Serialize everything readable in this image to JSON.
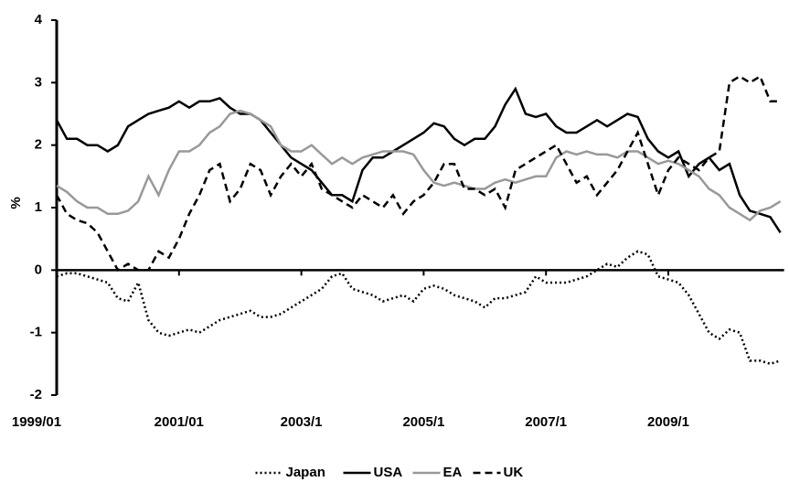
{
  "chart_data": {
    "type": "line",
    "y_label": "%",
    "categories": [
      "1999/01",
      null,
      null,
      null,
      null,
      null,
      null,
      null,
      null,
      null,
      null,
      null,
      "2001/01",
      null,
      null,
      null,
      null,
      null,
      null,
      null,
      null,
      null,
      null,
      null,
      "2003/1",
      null,
      null,
      null,
      null,
      null,
      null,
      null,
      null,
      null,
      null,
      null,
      "2005/1",
      null,
      null,
      null,
      null,
      null,
      null,
      null,
      null,
      null,
      null,
      null,
      "2007/1",
      null,
      null,
      null,
      null,
      null,
      null,
      null,
      null,
      null,
      null,
      null,
      "2009/1",
      null,
      null,
      null,
      null,
      null,
      null,
      null,
      null,
      null,
      null,
      null
    ],
    "ylim": [
      -2,
      4
    ],
    "yticks": [
      -2,
      -1,
      0,
      1,
      2,
      3,
      4
    ],
    "legend": "bottom",
    "series": [
      {
        "name": "Japan",
        "color": "#000000",
        "dash": "dotted",
        "values": [
          -0.1,
          -0.05,
          -0.05,
          -0.1,
          -0.15,
          -0.2,
          -0.45,
          -0.5,
          -0.2,
          -0.8,
          -1.0,
          -1.05,
          -1.0,
          -0.95,
          -1.0,
          -0.9,
          -0.8,
          -0.75,
          -0.7,
          -0.65,
          -0.75,
          -0.75,
          -0.7,
          -0.6,
          -0.5,
          -0.4,
          -0.3,
          -0.1,
          -0.05,
          -0.3,
          -0.35,
          -0.4,
          -0.5,
          -0.45,
          -0.4,
          -0.5,
          -0.3,
          -0.25,
          -0.3,
          -0.4,
          -0.45,
          -0.5,
          -0.6,
          -0.45,
          -0.45,
          -0.4,
          -0.35,
          -0.1,
          -0.2,
          -0.2,
          -0.2,
          -0.15,
          -0.1,
          0.0,
          0.1,
          0.05,
          0.2,
          0.3,
          0.25,
          -0.1,
          -0.15,
          -0.2,
          -0.4,
          -0.7,
          -1.0,
          -1.1,
          -0.95,
          -1.0,
          -1.45,
          -1.45,
          -1.5,
          -1.45
        ]
      },
      {
        "name": "USA",
        "color": "#000000",
        "dash": "solid",
        "values": [
          2.4,
          2.1,
          2.1,
          2.0,
          2.0,
          1.9,
          2.0,
          2.3,
          2.4,
          2.5,
          2.55,
          2.6,
          2.7,
          2.6,
          2.7,
          2.7,
          2.75,
          2.6,
          2.5,
          2.5,
          2.4,
          2.2,
          2.0,
          1.8,
          1.7,
          1.6,
          1.4,
          1.2,
          1.2,
          1.1,
          1.6,
          1.8,
          1.8,
          1.9,
          2.0,
          2.1,
          2.2,
          2.35,
          2.3,
          2.1,
          2.0,
          2.1,
          2.1,
          2.3,
          2.65,
          2.9,
          2.5,
          2.45,
          2.5,
          2.3,
          2.2,
          2.2,
          2.3,
          2.4,
          2.3,
          2.4,
          2.5,
          2.45,
          2.1,
          1.9,
          1.8,
          1.9,
          1.5,
          1.7,
          1.8,
          1.6,
          1.7,
          1.2,
          0.95,
          0.9,
          0.85,
          0.6
        ]
      },
      {
        "name": "EA",
        "color": "#999999",
        "dash": "solid",
        "values": [
          1.35,
          1.25,
          1.1,
          1.0,
          1.0,
          0.9,
          0.9,
          0.95,
          1.1,
          1.5,
          1.2,
          1.6,
          1.9,
          1.9,
          2.0,
          2.2,
          2.3,
          2.5,
          2.55,
          2.5,
          2.4,
          2.3,
          2.0,
          1.9,
          1.9,
          2.0,
          1.85,
          1.7,
          1.8,
          1.7,
          1.8,
          1.85,
          1.9,
          1.9,
          1.9,
          1.85,
          1.6,
          1.4,
          1.35,
          1.4,
          1.35,
          1.3,
          1.3,
          1.4,
          1.45,
          1.4,
          1.45,
          1.5,
          1.5,
          1.8,
          1.9,
          1.85,
          1.9,
          1.85,
          1.85,
          1.8,
          1.9,
          1.9,
          1.8,
          1.7,
          1.75,
          1.7,
          1.6,
          1.5,
          1.3,
          1.2,
          1.0,
          0.9,
          0.8,
          0.95,
          1.0,
          1.1
        ]
      },
      {
        "name": "UK",
        "color": "#000000",
        "dash": "dashed",
        "values": [
          1.2,
          0.9,
          0.8,
          0.75,
          0.6,
          0.3,
          0.0,
          0.1,
          0.0,
          0.0,
          0.3,
          0.2,
          0.5,
          0.9,
          1.2,
          1.6,
          1.7,
          1.1,
          1.3,
          1.7,
          1.6,
          1.2,
          1.5,
          1.7,
          1.5,
          1.7,
          1.3,
          1.2,
          1.1,
          1.0,
          1.2,
          1.1,
          1.0,
          1.2,
          0.9,
          1.1,
          1.2,
          1.4,
          1.7,
          1.7,
          1.3,
          1.3,
          1.2,
          1.3,
          1.0,
          1.6,
          1.7,
          1.8,
          1.9,
          2.0,
          1.7,
          1.4,
          1.5,
          1.2,
          1.4,
          1.6,
          1.9,
          2.2,
          1.7,
          1.2,
          1.6,
          1.8,
          1.7,
          1.6,
          1.8,
          1.9,
          3.0,
          3.1,
          3.0,
          3.1,
          2.7,
          2.7
        ]
      }
    ]
  }
}
